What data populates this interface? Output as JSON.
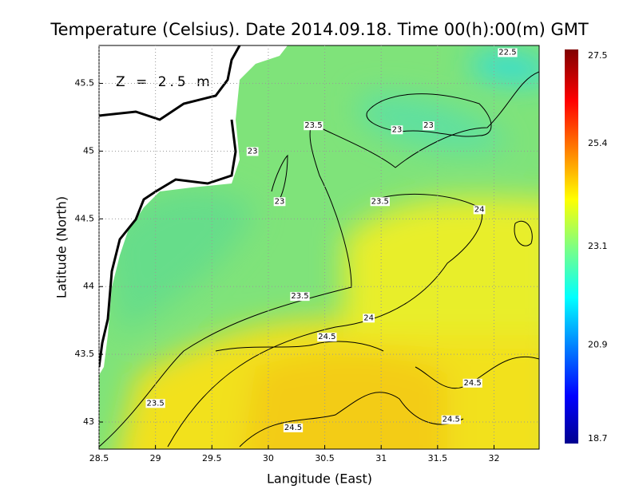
{
  "chart_data": {
    "type": "contour",
    "title": "Temperature (Celsius). Date 2014.09.18. Time 00(h):00(m) GMT",
    "annotation": "Z = 2.5 m",
    "x_label": "Langitude (East)",
    "y_label": "Latitude (North)",
    "xlim": [
      28.5,
      32.4
    ],
    "xticks": [
      28.5,
      29,
      29.5,
      30,
      30.5,
      31,
      31.5,
      32
    ],
    "ylim": [
      42.8,
      45.78
    ],
    "yticks": [
      43,
      43.5,
      44,
      44.5,
      45,
      45.5
    ],
    "grid": true,
    "clim": [
      18.7,
      27.5
    ],
    "cticks": [
      18.7,
      20.9,
      23.1,
      25.4,
      27.5
    ],
    "contour_labels": [
      {
        "value": 22.5,
        "x": 32.12,
        "y": 45.73
      },
      {
        "value": 23.5,
        "x": 30.4,
        "y": 45.19
      },
      {
        "value": 23,
        "x": 31.14,
        "y": 45.16
      },
      {
        "value": 23,
        "x": 31.42,
        "y": 45.19
      },
      {
        "value": 23,
        "x": 29.86,
        "y": 45.0
      },
      {
        "value": 23,
        "x": 30.1,
        "y": 44.63
      },
      {
        "value": 23.5,
        "x": 30.99,
        "y": 44.63
      },
      {
        "value": 24,
        "x": 31.87,
        "y": 44.57
      },
      {
        "value": 23.5,
        "x": 30.28,
        "y": 43.93
      },
      {
        "value": 24,
        "x": 30.89,
        "y": 43.77
      },
      {
        "value": 24.5,
        "x": 30.52,
        "y": 43.63
      },
      {
        "value": 24.5,
        "x": 31.81,
        "y": 43.29
      },
      {
        "value": 24.5,
        "x": 31.62,
        "y": 43.02
      },
      {
        "value": 24.5,
        "x": 30.22,
        "y": 42.96
      },
      {
        "value": 23.5,
        "x": 29.0,
        "y": 43.14
      }
    ]
  }
}
